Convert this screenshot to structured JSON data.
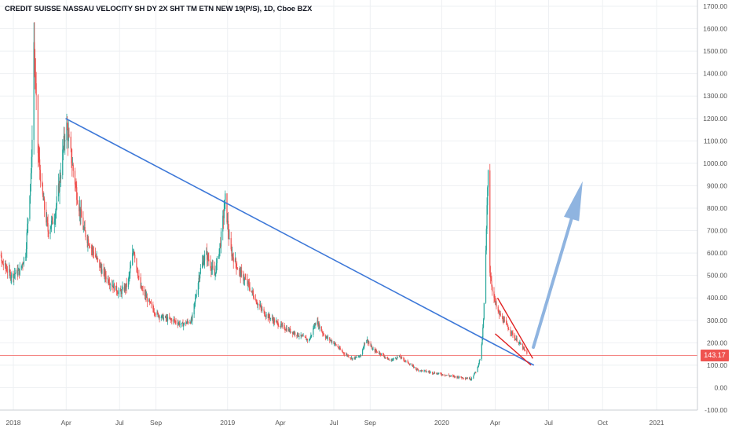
{
  "header": {
    "title": "CREDIT SUISSE NASSAU VELOCITY SH DY 2X SHT TM ETN NEW 19(P/S), 1D, Cboe BZX"
  },
  "price_tag": {
    "value": "143.17",
    "color": "#ef5350"
  },
  "colors": {
    "up": "#26a69a",
    "down": "#ef5350",
    "trendline": "#3d78d8",
    "wedge": "#e02020",
    "arrow": "#8fb4e0",
    "grid": "#eef0f3",
    "axis_text": "#555555"
  },
  "chart_data": {
    "type": "candlestick",
    "title": "CREDIT SUISSE NASSAU VELOCITY SH DY 2X SHT TM ETN NEW 19(P/S), 1D, Cboe BZX",
    "xlabel": "",
    "ylabel": "",
    "ylim": [
      -100,
      1700
    ],
    "grid": true,
    "y_ticks": [
      "1700.00",
      "1600.00",
      "1500.00",
      "1400.00",
      "1300.00",
      "1200.00",
      "1100.00",
      "1000.00",
      "900.00",
      "800.00",
      "700.00",
      "600.00",
      "500.00",
      "400.00",
      "300.00",
      "200.00",
      "100.00",
      "0.00",
      "-100.00"
    ],
    "x_ticks": [
      "2018",
      "Apr",
      "Jul",
      "Sep",
      "2019",
      "Apr",
      "Jul",
      "Sep",
      "2020",
      "Apr",
      "Jul",
      "Oct",
      "2021"
    ],
    "last_price": 143.17,
    "price_path": [
      [
        "2017-11-20",
        850
      ],
      [
        "2017-12-01",
        700
      ],
      [
        "2017-12-12",
        560
      ],
      [
        "2017-12-28",
        500
      ],
      [
        "2018-01-12",
        520
      ],
      [
        "2018-01-22",
        600
      ],
      [
        "2018-02-01",
        1000
      ],
      [
        "2018-02-05",
        1540
      ],
      [
        "2018-02-12",
        1050
      ],
      [
        "2018-02-20",
        850
      ],
      [
        "2018-03-01",
        700
      ],
      [
        "2018-03-12",
        760
      ],
      [
        "2018-03-20",
        900
      ],
      [
        "2018-04-01",
        1180
      ],
      [
        "2018-04-10",
        1020
      ],
      [
        "2018-04-20",
        850
      ],
      [
        "2018-05-01",
        700
      ],
      [
        "2018-05-15",
        620
      ],
      [
        "2018-06-01",
        520
      ],
      [
        "2018-06-15",
        470
      ],
      [
        "2018-07-01",
        420
      ],
      [
        "2018-07-15",
        460
      ],
      [
        "2018-07-25",
        620
      ],
      [
        "2018-08-05",
        450
      ],
      [
        "2018-08-20",
        380
      ],
      [
        "2018-09-01",
        330
      ],
      [
        "2018-09-15",
        310
      ],
      [
        "2018-10-01",
        300
      ],
      [
        "2018-10-15",
        280
      ],
      [
        "2018-11-01",
        300
      ],
      [
        "2018-11-15",
        520
      ],
      [
        "2018-11-25",
        600
      ],
      [
        "2018-12-10",
        500
      ],
      [
        "2018-12-20",
        650
      ],
      [
        "2018-12-28",
        840
      ],
      [
        "2019-01-05",
        620
      ],
      [
        "2019-01-20",
        520
      ],
      [
        "2019-02-05",
        460
      ],
      [
        "2019-02-20",
        380
      ],
      [
        "2019-03-05",
        330
      ],
      [
        "2019-03-20",
        300
      ],
      [
        "2019-04-05",
        270
      ],
      [
        "2019-04-20",
        250
      ],
      [
        "2019-05-05",
        230
      ],
      [
        "2019-05-20",
        210
      ],
      [
        "2019-06-01",
        300
      ],
      [
        "2019-06-15",
        230
      ],
      [
        "2019-07-01",
        200
      ],
      [
        "2019-07-15",
        160
      ],
      [
        "2019-08-01",
        130
      ],
      [
        "2019-08-15",
        140
      ],
      [
        "2019-08-25",
        220
      ],
      [
        "2019-09-05",
        170
      ],
      [
        "2019-09-20",
        150
      ],
      [
        "2019-10-05",
        120
      ],
      [
        "2019-10-20",
        140
      ],
      [
        "2019-11-05",
        110
      ],
      [
        "2019-11-20",
        80
      ],
      [
        "2019-12-10",
        70
      ],
      [
        "2019-12-31",
        60
      ],
      [
        "2020-01-20",
        50
      ],
      [
        "2020-02-05",
        45
      ],
      [
        "2020-02-20",
        40
      ],
      [
        "2020-03-01",
        80
      ],
      [
        "2020-03-08",
        150
      ],
      [
        "2020-03-12",
        300
      ],
      [
        "2020-03-16",
        600
      ],
      [
        "2020-03-20",
        990
      ],
      [
        "2020-03-23",
        520
      ],
      [
        "2020-03-28",
        420
      ],
      [
        "2020-04-05",
        340
      ],
      [
        "2020-04-15",
        300
      ],
      [
        "2020-04-25",
        260
      ],
      [
        "2020-05-05",
        220
      ],
      [
        "2020-05-15",
        190
      ],
      [
        "2020-05-25",
        150
      ]
    ],
    "annotations": {
      "trendline": {
        "from": [
          "2018-03-31",
          1200
        ],
        "to": [
          "2020-06-06",
          100
        ]
      },
      "wedge_upper": {
        "from": [
          "2020-04-05",
          400
        ],
        "to": [
          "2020-06-04",
          130
        ]
      },
      "wedge_lower": {
        "from": [
          "2020-04-01",
          240
        ],
        "to": [
          "2020-06-01",
          100
        ]
      },
      "arrow": {
        "from": [
          "2020-06-05",
          180
        ],
        "to": [
          "2020-08-28",
          920
        ]
      },
      "last_price_line": 143.17
    }
  }
}
